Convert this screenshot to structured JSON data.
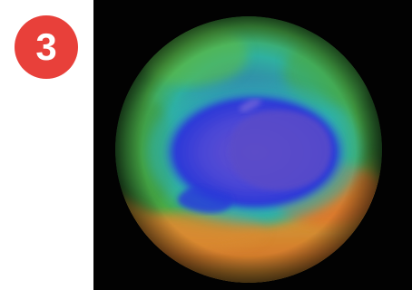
{
  "badge": {
    "number": "3",
    "color": "#e8403a"
  },
  "image": {
    "subject": "ozone-hole-globe",
    "background_color": "#020202",
    "colors": {
      "outer_green": "#3fa84b",
      "cyan_ring": "#2fb3b3",
      "blue_ring": "#2b39d8",
      "purple_center": "#5a4cc8",
      "orange_band": "#e07a2a",
      "yellow_band": "#c8b43a"
    }
  }
}
